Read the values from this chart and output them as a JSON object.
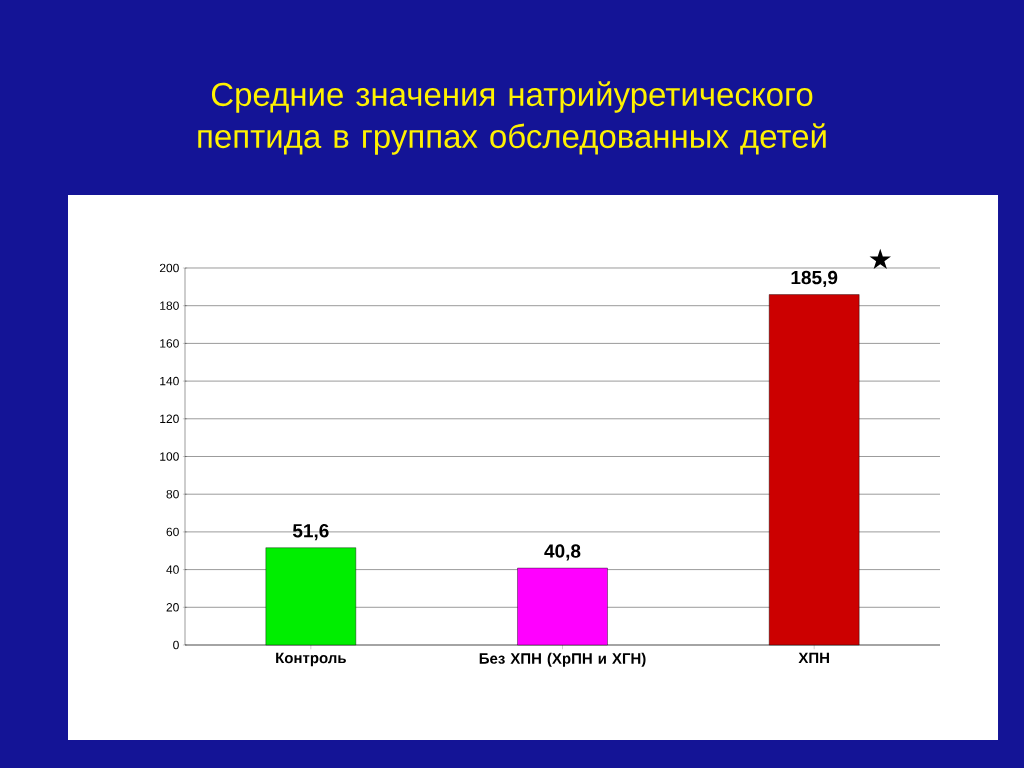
{
  "chart_data": {
    "type": "bar",
    "title": "Средние значения натрийуретического пептида в группах обследованных  детей",
    "categories": [
      "Контроль",
      "Без ХПН (ХрПН и ХГН)",
      "ХПН"
    ],
    "values": [
      51.6,
      40.8,
      185.9
    ],
    "colors": [
      "#00ee00",
      "#ff00ff",
      "#cc0000"
    ],
    "value_labels": [
      "51,6",
      "40,8",
      "185,9"
    ],
    "annotations": [
      {
        "text": "★",
        "x": "ХПН",
        "y": 185.9
      }
    ],
    "ylim": [
      0,
      200
    ],
    "yticks": [
      0,
      20,
      40,
      60,
      80,
      100,
      120,
      140,
      160,
      180,
      200
    ],
    "grid": "y"
  }
}
